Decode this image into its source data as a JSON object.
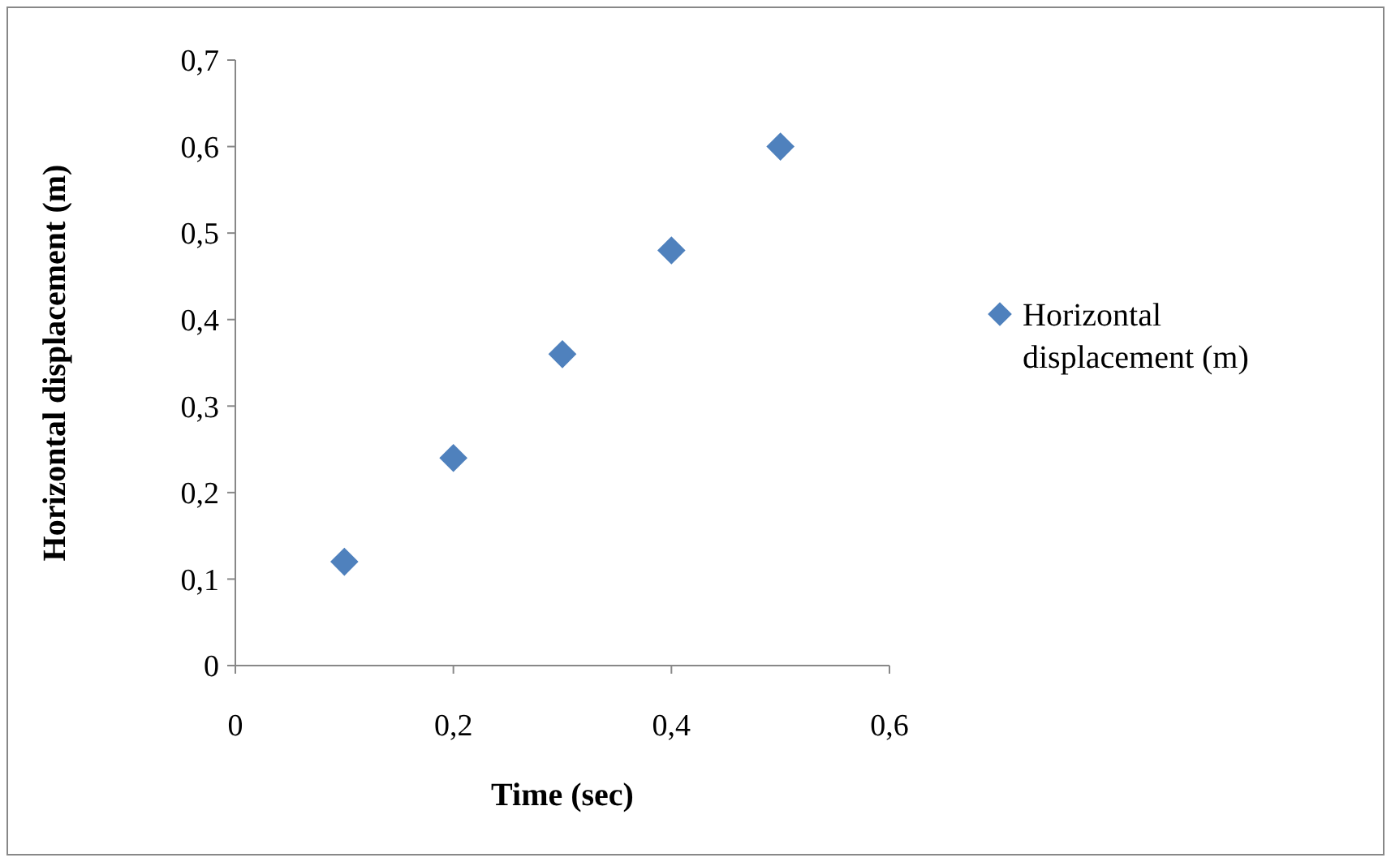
{
  "chart_data": {
    "type": "scatter",
    "xlabel": "Time (sec)",
    "ylabel": "Horizontal displacement (m)",
    "x": [
      0.1,
      0.2,
      0.3,
      0.4,
      0.5
    ],
    "series": [
      {
        "name": "Horizontal displacement (m)",
        "color": "#4f81bd",
        "values": [
          0.12,
          0.24,
          0.36,
          0.48,
          0.6
        ]
      }
    ],
    "xlim": [
      0,
      0.6
    ],
    "xticks": [
      0,
      {
        "value": 0.2,
        "label": "0,2"
      },
      {
        "value": 0.4,
        "label": "0,4"
      },
      {
        "value": 0.6,
        "label": "0,6"
      }
    ],
    "ylim": [
      0,
      0.7
    ],
    "yticks": [
      0,
      {
        "value": 0.1,
        "label": "0,1"
      },
      {
        "value": 0.2,
        "label": "0,2"
      },
      {
        "value": 0.3,
        "label": "0,3"
      },
      {
        "value": 0.4,
        "label": "0,4"
      },
      {
        "value": 0.5,
        "label": "0,5"
      },
      {
        "value": 0.6,
        "label": "0,6"
      },
      {
        "value": 0.7,
        "label": "0,7"
      }
    ],
    "legend": "right",
    "marker": "diamond",
    "grid": false
  }
}
